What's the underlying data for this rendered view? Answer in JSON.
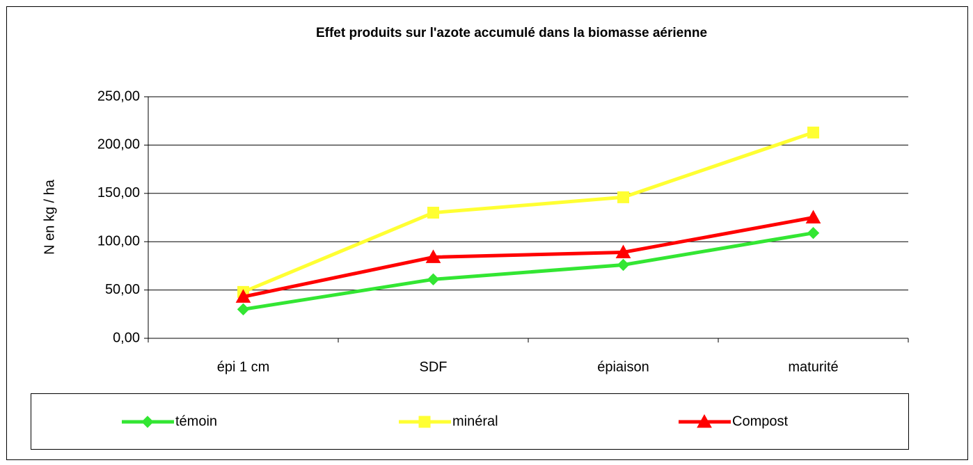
{
  "chart_data": {
    "type": "line",
    "title": "Effet produits sur l'azote accumulé dans la biomasse aérienne",
    "y_label": "N en kg / ha",
    "categories": [
      "épi 1 cm",
      "SDF",
      "épiaison",
      "maturité"
    ],
    "series": [
      {
        "name": "témoin",
        "color": "#33e633",
        "marker": "diamond",
        "values": [
          30,
          61,
          76,
          109
        ]
      },
      {
        "name": "minéral",
        "color": "#ffff33",
        "marker": "square",
        "values": [
          48,
          130,
          146,
          213
        ]
      },
      {
        "name": "Compost",
        "color": "#ff0000",
        "marker": "triangle",
        "values": [
          43,
          84,
          89,
          125
        ]
      }
    ],
    "ylim": [
      0,
      250
    ],
    "yticks": [
      {
        "value": 0,
        "label": "0,00"
      },
      {
        "value": 50,
        "label": "50,00"
      },
      {
        "value": 100,
        "label": "100,00"
      },
      {
        "value": 150,
        "label": "150,00"
      },
      {
        "value": 200,
        "label": "200,00"
      },
      {
        "value": 250,
        "label": "250,00"
      }
    ],
    "grid": true,
    "legend": "bottom"
  }
}
